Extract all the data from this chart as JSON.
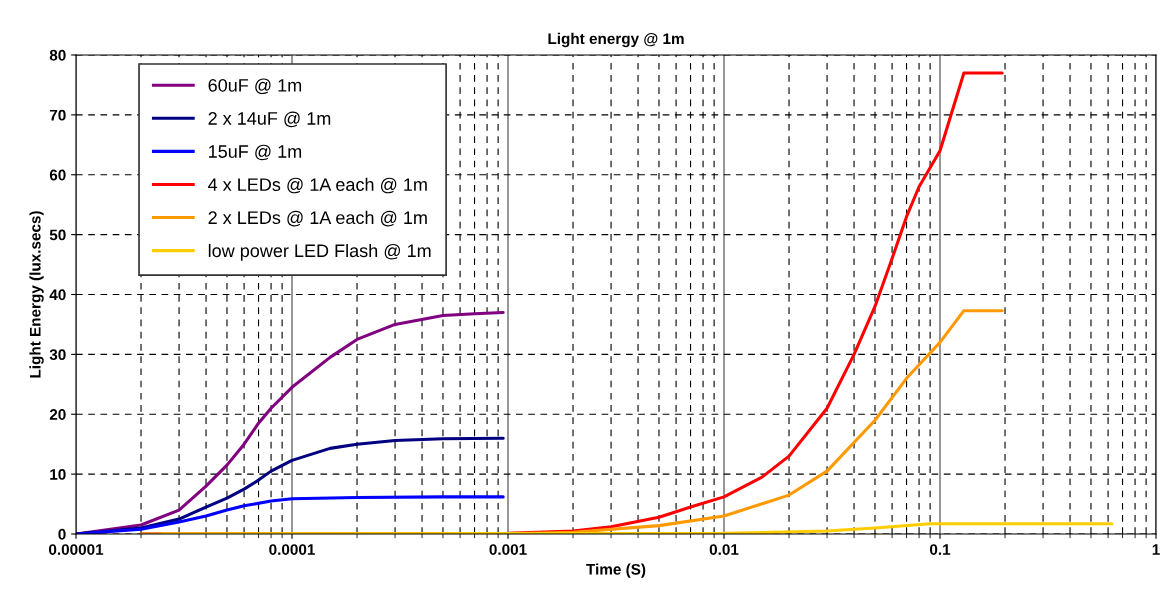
{
  "chart_data": {
    "type": "line",
    "title": "Light energy @ 1m",
    "xlabel": "Time (S)",
    "ylabel": "Light Energy (lux.secs)",
    "log": "x",
    "grid": true,
    "legend": "top left",
    "line_style": "solid",
    "marker": "none",
    "xlim": [
      1e-05,
      1
    ],
    "xticks": [
      {
        "value": 1e-05,
        "label": "0.00001"
      },
      {
        "value": 0.0001,
        "label": "0.0001"
      },
      {
        "value": 0.001,
        "label": "0.001"
      },
      {
        "value": 0.01,
        "label": "0.01"
      },
      {
        "value": 0.1,
        "label": "0.1"
      },
      1
    ],
    "ylim": [
      0,
      80
    ],
    "yticks": [
      0,
      10,
      20,
      30,
      40,
      50,
      60,
      70,
      80
    ],
    "series": [
      {
        "name": "60uF @ 1m",
        "color": "#800080",
        "x": [
          1e-05,
          2e-05,
          3e-05,
          4e-05,
          5e-05,
          6e-05,
          7e-05,
          8e-05,
          0.0001,
          0.00015,
          0.0002,
          0.0003,
          0.0005,
          0.0007,
          0.00095
        ],
        "values": [
          0,
          1.5,
          4,
          8,
          11.5,
          15,
          18.5,
          21,
          24.5,
          29.5,
          32.5,
          35,
          36.5,
          36.8,
          37
        ]
      },
      {
        "name": "2 x 14uF @ 1m",
        "color": "#000080",
        "x": [
          1e-05,
          2e-05,
          3e-05,
          4e-05,
          5e-05,
          6e-05,
          7e-05,
          8e-05,
          0.0001,
          0.00015,
          0.0002,
          0.0003,
          0.0005,
          0.00095
        ],
        "values": [
          0,
          1,
          2.5,
          4.5,
          6,
          7.5,
          9,
          10.5,
          12.3,
          14.3,
          15,
          15.6,
          15.9,
          16
        ]
      },
      {
        "name": "15uF @ 1m",
        "color": "#0000ff",
        "x": [
          1e-05,
          2e-05,
          3e-05,
          4e-05,
          5e-05,
          6e-05,
          8e-05,
          0.0001,
          0.0002,
          0.0005,
          0.00095
        ],
        "values": [
          0,
          0.8,
          2,
          3,
          4,
          4.7,
          5.5,
          5.9,
          6.1,
          6.2,
          6.2
        ]
      },
      {
        "name": "4 x LEDs @ 1A each @ 1m",
        "color": "#ff0000",
        "x": [
          2e-05,
          0.001,
          0.002,
          0.003,
          0.005,
          0.007,
          0.01,
          0.015,
          0.02,
          0.03,
          0.04,
          0.05,
          0.06,
          0.07,
          0.08,
          0.1,
          0.129,
          0.194
        ],
        "values": [
          0,
          0.1,
          0.5,
          1.2,
          2.8,
          4.5,
          6.2,
          9.5,
          13,
          21,
          30,
          38,
          46,
          53,
          58,
          64,
          77,
          77
        ]
      },
      {
        "name": "2 x LEDs @ 1A each @ 1m",
        "color": "#ff9900",
        "x": [
          2e-05,
          0.001,
          0.002,
          0.005,
          0.01,
          0.02,
          0.03,
          0.05,
          0.07,
          0.1,
          0.129,
          0.194
        ],
        "values": [
          0,
          0.05,
          0.3,
          1.4,
          3,
          6.5,
          10.5,
          19,
          26,
          32,
          37.3,
          37.3
        ]
      },
      {
        "name": "low power LED Flash @ 1m",
        "color": "#ffcc00",
        "x": [
          2.5e-05,
          0.01,
          0.03,
          0.05,
          0.09,
          0.2,
          0.625
        ],
        "values": [
          0,
          0.1,
          0.5,
          1,
          1.7,
          1.7,
          1.7
        ]
      }
    ]
  }
}
